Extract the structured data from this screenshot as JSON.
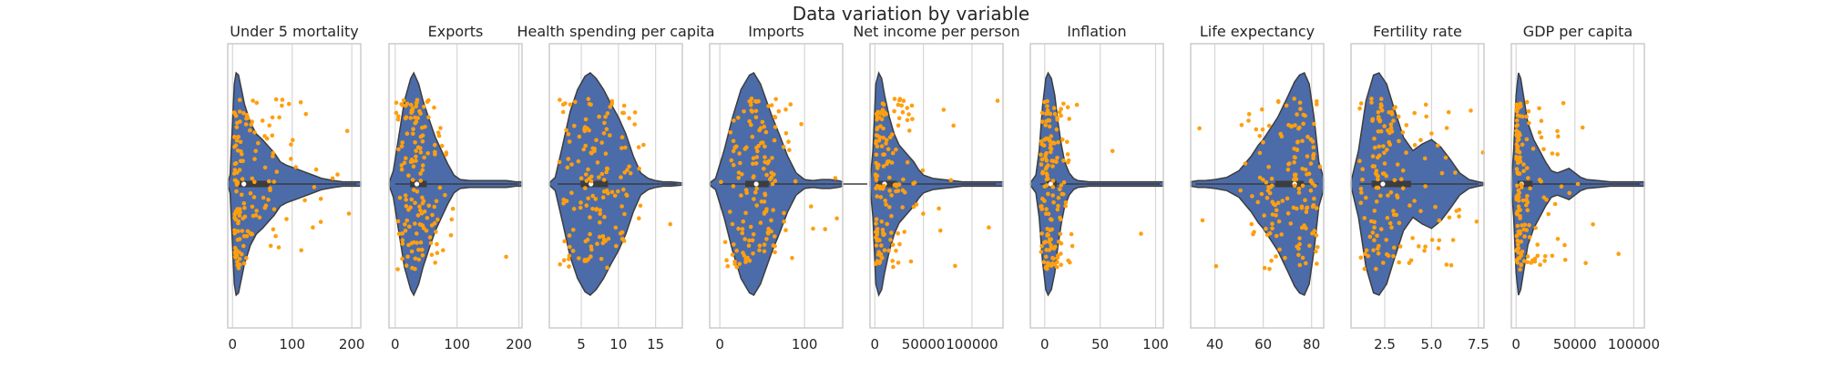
{
  "title": "Data variation by variable",
  "colors": {
    "violin": "#4c6ca9",
    "violin_edge": "#3d3d3d",
    "points": "#ff9f0f",
    "grid": "#d6d6d6",
    "frame": "#cccccc",
    "box": "#3d3d3d"
  },
  "chart_data": [
    {
      "type": "violin",
      "title": "Under 5 mortality",
      "xlim": [
        -8,
        215
      ],
      "ticks": [
        0,
        100,
        200
      ],
      "tick_labels": [
        "0",
        "100",
        "200"
      ],
      "stats": {
        "min": 2.6,
        "q1": 8,
        "median": 19,
        "q3": 62,
        "max": 208
      },
      "density": [
        [
          -8,
          0.01
        ],
        [
          -4,
          0.08
        ],
        [
          0,
          0.55
        ],
        [
          3,
          0.9
        ],
        [
          6,
          1.0
        ],
        [
          10,
          0.98
        ],
        [
          15,
          0.85
        ],
        [
          20,
          0.72
        ],
        [
          30,
          0.55
        ],
        [
          40,
          0.45
        ],
        [
          50,
          0.4
        ],
        [
          60,
          0.34
        ],
        [
          70,
          0.28
        ],
        [
          80,
          0.2
        ],
        [
          90,
          0.17
        ],
        [
          100,
          0.15
        ],
        [
          110,
          0.13
        ],
        [
          120,
          0.11
        ],
        [
          130,
          0.09
        ],
        [
          140,
          0.07
        ],
        [
          150,
          0.05
        ],
        [
          160,
          0.04
        ],
        [
          170,
          0.03
        ],
        [
          185,
          0.02
        ],
        [
          200,
          0.02
        ],
        [
          215,
          0.02
        ]
      ]
    },
    {
      "type": "violin",
      "title": "Exports",
      "xlim": [
        -10,
        205
      ],
      "ticks": [
        0,
        100,
        200
      ],
      "tick_labels": [
        "0",
        "100",
        "200"
      ],
      "stats": {
        "min": 0.1,
        "q1": 24,
        "median": 35,
        "q3": 51,
        "max": 200
      },
      "density": [
        [
          -10,
          0.01
        ],
        [
          -3,
          0.12
        ],
        [
          5,
          0.4
        ],
        [
          15,
          0.75
        ],
        [
          25,
          0.95
        ],
        [
          30,
          1.0
        ],
        [
          38,
          0.9
        ],
        [
          45,
          0.75
        ],
        [
          55,
          0.58
        ],
        [
          65,
          0.42
        ],
        [
          75,
          0.3
        ],
        [
          85,
          0.18
        ],
        [
          95,
          0.08
        ],
        [
          105,
          0.04
        ],
        [
          120,
          0.03
        ],
        [
          140,
          0.03
        ],
        [
          160,
          0.03
        ],
        [
          180,
          0.03
        ],
        [
          195,
          0.02
        ],
        [
          205,
          0.02
        ]
      ]
    },
    {
      "type": "violin",
      "title": "Health spending per capita",
      "xlim": [
        0.7,
        18.6
      ],
      "ticks": [
        5,
        10,
        15
      ],
      "tick_labels": [
        "5",
        "10",
        "15"
      ],
      "stats": {
        "min": 1.8,
        "q1": 4.9,
        "median": 6.3,
        "q3": 8.6,
        "max": 17.9
      },
      "density": [
        [
          0.7,
          0.01
        ],
        [
          1.5,
          0.06
        ],
        [
          2.5,
          0.35
        ],
        [
          3.5,
          0.65
        ],
        [
          4.5,
          0.85
        ],
        [
          5.5,
          0.97
        ],
        [
          6.2,
          1.0
        ],
        [
          7,
          0.95
        ],
        [
          8,
          0.85
        ],
        [
          9,
          0.72
        ],
        [
          10,
          0.6
        ],
        [
          11,
          0.45
        ],
        [
          12,
          0.25
        ],
        [
          13,
          0.1
        ],
        [
          14,
          0.05
        ],
        [
          15,
          0.03
        ],
        [
          16,
          0.02
        ],
        [
          17,
          0.02
        ],
        [
          18.6,
          0.01
        ]
      ]
    },
    {
      "type": "violin",
      "title": "Imports",
      "xlim": [
        -12,
        145
      ],
      "ticks": [
        0,
        100
      ],
      "tick_labels": [
        "0",
        "100"
      ],
      "stats": {
        "min": 0.07,
        "q1": 30,
        "median": 43,
        "q3": 58,
        "max": 174
      },
      "density": [
        [
          -12,
          0.01
        ],
        [
          -5,
          0.05
        ],
        [
          5,
          0.3
        ],
        [
          15,
          0.6
        ],
        [
          25,
          0.85
        ],
        [
          35,
          0.98
        ],
        [
          40,
          1.0
        ],
        [
          48,
          0.9
        ],
        [
          55,
          0.75
        ],
        [
          62,
          0.6
        ],
        [
          70,
          0.45
        ],
        [
          80,
          0.25
        ],
        [
          90,
          0.1
        ],
        [
          100,
          0.04
        ],
        [
          110,
          0.03
        ],
        [
          120,
          0.04
        ],
        [
          130,
          0.04
        ],
        [
          140,
          0.03
        ],
        [
          145,
          0.02
        ]
      ]
    },
    {
      "type": "violin",
      "title": "Net income per person",
      "xlim": [
        -5000,
        132000
      ],
      "ticks": [
        0,
        50000,
        100000
      ],
      "tick_labels": [
        "0",
        "50000",
        "100000"
      ],
      "stats": {
        "min": 609,
        "q1": 3355,
        "median": 9960,
        "q3": 22800,
        "max": 125000
      },
      "density": [
        [
          -5000,
          0.02
        ],
        [
          -2000,
          0.3
        ],
        [
          1000,
          0.9
        ],
        [
          4000,
          1.0
        ],
        [
          7000,
          0.95
        ],
        [
          10000,
          0.8
        ],
        [
          15000,
          0.6
        ],
        [
          20000,
          0.45
        ],
        [
          25000,
          0.35
        ],
        [
          30000,
          0.3
        ],
        [
          35000,
          0.25
        ],
        [
          40000,
          0.2
        ],
        [
          45000,
          0.13
        ],
        [
          50000,
          0.08
        ],
        [
          60000,
          0.05
        ],
        [
          70000,
          0.04
        ],
        [
          80000,
          0.03
        ],
        [
          90000,
          0.02
        ],
        [
          100000,
          0.02
        ],
        [
          110000,
          0.02
        ],
        [
          120000,
          0.02
        ],
        [
          132000,
          0.02
        ]
      ]
    },
    {
      "type": "violin",
      "title": "Inflation",
      "xlim": [
        -13,
        107
      ],
      "ticks": [
        0,
        50,
        100
      ],
      "tick_labels": [
        "0",
        "50",
        "100"
      ],
      "stats": {
        "min": -4.2,
        "q1": 1.8,
        "median": 5.4,
        "q3": 10.8,
        "max": 104
      },
      "density": [
        [
          -13,
          0.01
        ],
        [
          -8,
          0.08
        ],
        [
          -5,
          0.3
        ],
        [
          -2,
          0.7
        ],
        [
          1,
          0.95
        ],
        [
          3,
          1.0
        ],
        [
          6,
          0.95
        ],
        [
          9,
          0.8
        ],
        [
          12,
          0.55
        ],
        [
          15,
          0.35
        ],
        [
          18,
          0.2
        ],
        [
          22,
          0.1
        ],
        [
          26,
          0.05
        ],
        [
          30,
          0.03
        ],
        [
          40,
          0.02
        ],
        [
          60,
          0.02
        ],
        [
          80,
          0.02
        ],
        [
          100,
          0.02
        ],
        [
          107,
          0.02
        ]
      ]
    },
    {
      "type": "violin",
      "title": "Life expectancy",
      "xlim": [
        30,
        85
      ],
      "ticks": [
        40,
        60,
        80
      ],
      "tick_labels": [
        "40",
        "60",
        "80"
      ],
      "stats": {
        "min": 32,
        "q1": 65,
        "median": 73,
        "q3": 76.8,
        "max": 82.8
      },
      "density": [
        [
          30,
          0.02
        ],
        [
          33,
          0.03
        ],
        [
          36,
          0.03
        ],
        [
          40,
          0.04
        ],
        [
          45,
          0.06
        ],
        [
          50,
          0.12
        ],
        [
          55,
          0.25
        ],
        [
          58,
          0.35
        ],
        [
          60,
          0.4
        ],
        [
          63,
          0.5
        ],
        [
          66,
          0.6
        ],
        [
          70,
          0.78
        ],
        [
          73,
          0.92
        ],
        [
          75,
          0.98
        ],
        [
          77,
          1.0
        ],
        [
          79,
          0.9
        ],
        [
          81,
          0.6
        ],
        [
          83,
          0.2
        ],
        [
          85,
          0.05
        ]
      ]
    },
    {
      "type": "violin",
      "title": "Fertility rate",
      "xlim": [
        0.7,
        7.8
      ],
      "ticks": [
        2.5,
        5.0,
        7.5
      ],
      "tick_labels": [
        "2.5",
        "5.0",
        "7.5"
      ],
      "stats": {
        "min": 1.15,
        "q1": 1.8,
        "median": 2.4,
        "q3": 3.9,
        "max": 7.5
      },
      "density": [
        [
          0.7,
          0.02
        ],
        [
          1.1,
          0.3
        ],
        [
          1.5,
          0.75
        ],
        [
          1.9,
          0.98
        ],
        [
          2.2,
          1.0
        ],
        [
          2.6,
          0.9
        ],
        [
          3,
          0.68
        ],
        [
          3.5,
          0.42
        ],
        [
          4,
          0.3
        ],
        [
          4.5,
          0.36
        ],
        [
          5,
          0.4
        ],
        [
          5.5,
          0.33
        ],
        [
          6,
          0.22
        ],
        [
          6.5,
          0.1
        ],
        [
          7,
          0.04
        ],
        [
          7.5,
          0.02
        ],
        [
          7.8,
          0.01
        ]
      ]
    },
    {
      "type": "violin",
      "title": "GDP per capita",
      "xlim": [
        -4000,
        109000
      ],
      "ticks": [
        0,
        50000,
        100000
      ],
      "tick_labels": [
        "0",
        "50000",
        "100000"
      ],
      "stats": {
        "min": 231,
        "q1": 1330,
        "median": 4660,
        "q3": 14050,
        "max": 105000
      },
      "density": [
        [
          -4000,
          0.02
        ],
        [
          -2000,
          0.3
        ],
        [
          0,
          0.8
        ],
        [
          2000,
          1.0
        ],
        [
          4000,
          0.95
        ],
        [
          7000,
          0.75
        ],
        [
          10000,
          0.55
        ],
        [
          15000,
          0.4
        ],
        [
          20000,
          0.3
        ],
        [
          25000,
          0.2
        ],
        [
          30000,
          0.12
        ],
        [
          35000,
          0.1
        ],
        [
          40000,
          0.12
        ],
        [
          45000,
          0.14
        ],
        [
          50000,
          0.1
        ],
        [
          55000,
          0.06
        ],
        [
          60000,
          0.04
        ],
        [
          70000,
          0.03
        ],
        [
          80000,
          0.02
        ],
        [
          90000,
          0.02
        ],
        [
          100000,
          0.02
        ],
        [
          109000,
          0.02
        ]
      ]
    }
  ]
}
